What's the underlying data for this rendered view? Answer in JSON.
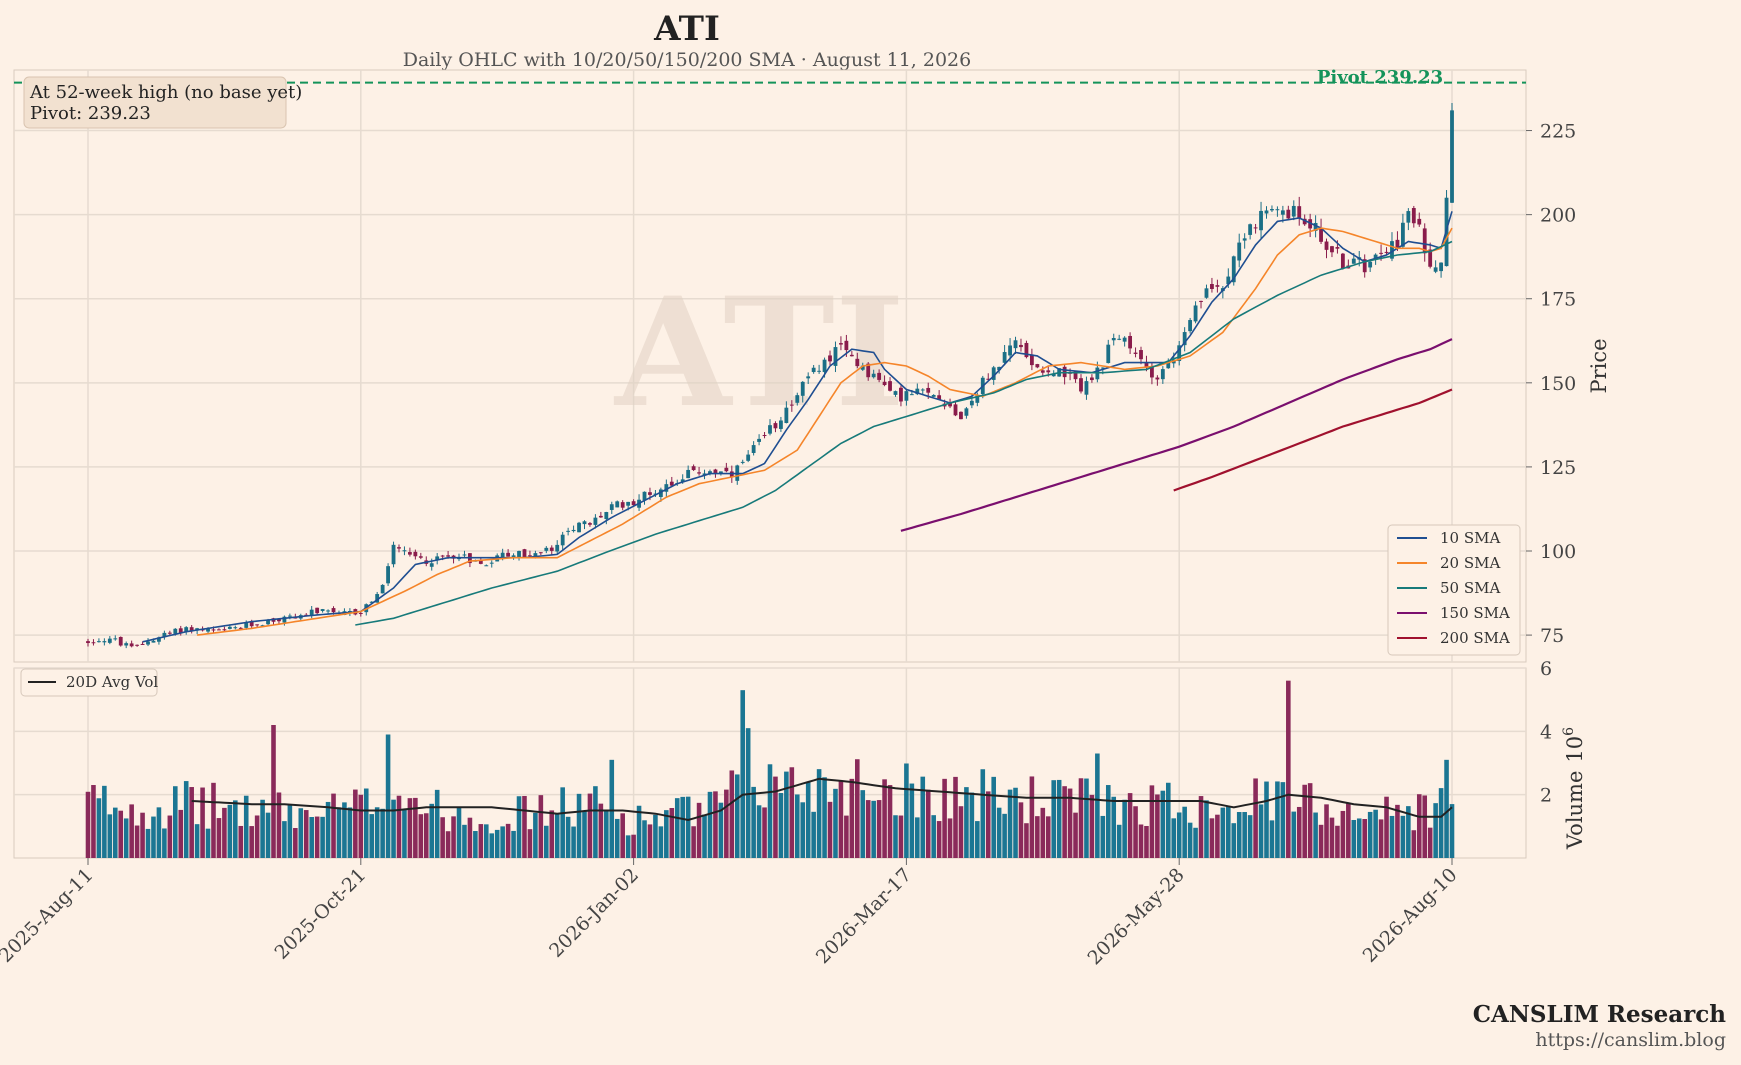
{
  "chart_data": {
    "type": "candlestick",
    "ticker": "ATI",
    "title": "ATI",
    "subtitle": "Daily OHLC with 10/20/50/150/200 SMA  ·  August 11, 2026",
    "watermark": "ATI",
    "price_axis": {
      "label": "Price",
      "ylim": [
        67,
        243
      ],
      "ticks": [
        75,
        100,
        125,
        150,
        175,
        200,
        225
      ]
    },
    "volume_axis": {
      "label": "Volume",
      "multiplier": "10",
      "multiplier_exp": "6",
      "ylim": [
        0,
        6
      ],
      "ticks": [
        2,
        4,
        6
      ]
    },
    "x_tick_labels": [
      "2025-Aug-11",
      "2025-Oct-21",
      "2026-Jan-02",
      "2026-Mar-17",
      "2026-May-28",
      "2026-Aug-10"
    ],
    "x_tick_index": [
      0,
      50,
      100,
      150,
      200,
      250
    ],
    "n_bars": 251,
    "pivot": {
      "value": 239.23,
      "label": "Pivot 239.23",
      "color": "#14935a"
    },
    "annotation": {
      "line1": "At 52-week high (no base yet)",
      "line2": "Pivot: 239.23"
    },
    "price_path": [
      [
        0,
        73
      ],
      [
        4,
        74
      ],
      [
        8,
        71
      ],
      [
        12,
        74
      ],
      [
        18,
        77
      ],
      [
        24,
        76
      ],
      [
        30,
        78
      ],
      [
        36,
        80
      ],
      [
        42,
        82
      ],
      [
        46,
        81
      ],
      [
        50,
        82
      ],
      [
        54,
        89
      ],
      [
        56,
        102
      ],
      [
        58,
        99
      ],
      [
        62,
        97
      ],
      [
        68,
        99
      ],
      [
        72,
        96
      ],
      [
        76,
        99
      ],
      [
        82,
        99
      ],
      [
        86,
        101
      ],
      [
        88,
        107
      ],
      [
        92,
        108
      ],
      [
        96,
        113
      ],
      [
        100,
        115
      ],
      [
        104,
        118
      ],
      [
        110,
        123
      ],
      [
        114,
        124
      ],
      [
        118,
        122
      ],
      [
        122,
        130
      ],
      [
        126,
        138
      ],
      [
        130,
        147
      ],
      [
        134,
        155
      ],
      [
        138,
        160
      ],
      [
        140,
        158
      ],
      [
        144,
        152
      ],
      [
        148,
        146
      ],
      [
        152,
        147
      ],
      [
        156,
        146
      ],
      [
        160,
        140
      ],
      [
        164,
        150
      ],
      [
        168,
        158
      ],
      [
        170,
        162
      ],
      [
        174,
        155
      ],
      [
        178,
        153
      ],
      [
        182,
        149
      ],
      [
        186,
        154
      ],
      [
        188,
        165
      ],
      [
        192,
        158
      ],
      [
        196,
        152
      ],
      [
        200,
        160
      ],
      [
        204,
        175
      ],
      [
        208,
        180
      ],
      [
        212,
        195
      ],
      [
        216,
        200
      ],
      [
        220,
        201
      ],
      [
        224,
        198
      ],
      [
        226,
        193
      ],
      [
        230,
        186
      ],
      [
        234,
        185
      ],
      [
        236,
        190
      ],
      [
        240,
        192
      ],
      [
        242,
        200
      ],
      [
        244,
        195
      ],
      [
        246,
        185
      ],
      [
        248,
        188
      ],
      [
        249,
        203
      ],
      [
        250,
        236
      ]
    ],
    "sma": [
      {
        "name": "10 SMA",
        "color": "#1f4e91",
        "start": 10,
        "path": [
          [
            10,
            73
          ],
          [
            18,
            76
          ],
          [
            30,
            79
          ],
          [
            42,
            81
          ],
          [
            50,
            82
          ],
          [
            56,
            89
          ],
          [
            60,
            96
          ],
          [
            66,
            98
          ],
          [
            72,
            98
          ],
          [
            80,
            98
          ],
          [
            86,
            99
          ],
          [
            90,
            104
          ],
          [
            96,
            110
          ],
          [
            102,
            115
          ],
          [
            108,
            120
          ],
          [
            114,
            123
          ],
          [
            120,
            123
          ],
          [
            124,
            126
          ],
          [
            128,
            136
          ],
          [
            132,
            145
          ],
          [
            136,
            155
          ],
          [
            140,
            160
          ],
          [
            144,
            159
          ],
          [
            146,
            154
          ],
          [
            150,
            148
          ],
          [
            154,
            146
          ],
          [
            158,
            144
          ],
          [
            162,
            146
          ],
          [
            166,
            152
          ],
          [
            170,
            159
          ],
          [
            174,
            158
          ],
          [
            178,
            154
          ],
          [
            184,
            153
          ],
          [
            190,
            156
          ],
          [
            194,
            156
          ],
          [
            198,
            156
          ],
          [
            202,
            164
          ],
          [
            206,
            174
          ],
          [
            210,
            181
          ],
          [
            214,
            191
          ],
          [
            218,
            198
          ],
          [
            222,
            199
          ],
          [
            226,
            196
          ],
          [
            230,
            190
          ],
          [
            234,
            186
          ],
          [
            238,
            188
          ],
          [
            242,
            192
          ],
          [
            246,
            191
          ],
          [
            248,
            190
          ],
          [
            250,
            201
          ]
        ]
      },
      {
        "name": "20 SMA",
        "color": "#f5852a",
        "start": 20,
        "path": [
          [
            20,
            75
          ],
          [
            30,
            77
          ],
          [
            42,
            80
          ],
          [
            50,
            82
          ],
          [
            58,
            88
          ],
          [
            64,
            93
          ],
          [
            70,
            97
          ],
          [
            78,
            98
          ],
          [
            86,
            98
          ],
          [
            92,
            103
          ],
          [
            98,
            108
          ],
          [
            106,
            116
          ],
          [
            112,
            120
          ],
          [
            118,
            122
          ],
          [
            124,
            124
          ],
          [
            130,
            130
          ],
          [
            134,
            140
          ],
          [
            138,
            150
          ],
          [
            142,
            155
          ],
          [
            146,
            156
          ],
          [
            150,
            155
          ],
          [
            154,
            152
          ],
          [
            158,
            148
          ],
          [
            164,
            146
          ],
          [
            170,
            150
          ],
          [
            176,
            155
          ],
          [
            182,
            156
          ],
          [
            190,
            154
          ],
          [
            196,
            155
          ],
          [
            202,
            158
          ],
          [
            208,
            165
          ],
          [
            214,
            178
          ],
          [
            218,
            188
          ],
          [
            222,
            194
          ],
          [
            226,
            196
          ],
          [
            230,
            195
          ],
          [
            236,
            192
          ],
          [
            240,
            190
          ],
          [
            244,
            190
          ],
          [
            246,
            189
          ],
          [
            248,
            190
          ],
          [
            250,
            196
          ]
        ]
      },
      {
        "name": "50 SMA",
        "color": "#177a7a",
        "start": 49,
        "path": [
          [
            49,
            78
          ],
          [
            56,
            80
          ],
          [
            64,
            84
          ],
          [
            74,
            89
          ],
          [
            86,
            94
          ],
          [
            94,
            99
          ],
          [
            104,
            105
          ],
          [
            112,
            109
          ],
          [
            120,
            113
          ],
          [
            126,
            118
          ],
          [
            132,
            125
          ],
          [
            138,
            132
          ],
          [
            144,
            137
          ],
          [
            150,
            140
          ],
          [
            158,
            144
          ],
          [
            166,
            147
          ],
          [
            172,
            151
          ],
          [
            178,
            153
          ],
          [
            186,
            153
          ],
          [
            194,
            154
          ],
          [
            202,
            159
          ],
          [
            210,
            169
          ],
          [
            218,
            176
          ],
          [
            226,
            182
          ],
          [
            234,
            186
          ],
          [
            240,
            188
          ],
          [
            246,
            189
          ],
          [
            250,
            192
          ]
        ]
      },
      {
        "name": "150 SMA",
        "color": "#7a0f6e",
        "start": 149,
        "path": [
          [
            149,
            106
          ],
          [
            160,
            111
          ],
          [
            170,
            116
          ],
          [
            180,
            121
          ],
          [
            190,
            126
          ],
          [
            200,
            131
          ],
          [
            210,
            137
          ],
          [
            220,
            144
          ],
          [
            230,
            151
          ],
          [
            240,
            157
          ],
          [
            246,
            160
          ],
          [
            250,
            163
          ]
        ]
      },
      {
        "name": "200 SMA",
        "color": "#a0112e",
        "start": 199,
        "path": [
          [
            199,
            118
          ],
          [
            206,
            122
          ],
          [
            214,
            127
          ],
          [
            222,
            132
          ],
          [
            230,
            137
          ],
          [
            238,
            141
          ],
          [
            244,
            144
          ],
          [
            250,
            148
          ]
        ]
      }
    ],
    "volume_profile": [
      [
        0,
        1.8
      ],
      [
        10,
        1.6
      ],
      [
        20,
        1.7
      ],
      [
        30,
        1.5
      ],
      [
        40,
        1.4
      ],
      [
        50,
        1.6
      ],
      [
        56,
        2.2
      ],
      [
        64,
        1.5
      ],
      [
        74,
        1.3
      ],
      [
        84,
        1.5
      ],
      [
        92,
        1.7
      ],
      [
        100,
        1.2
      ],
      [
        108,
        1.4
      ],
      [
        114,
        1.5
      ],
      [
        118,
        2.0
      ],
      [
        122,
        2.4
      ],
      [
        130,
        2.3
      ],
      [
        140,
        2.4
      ],
      [
        150,
        2.2
      ],
      [
        160,
        2.0
      ],
      [
        170,
        1.9
      ],
      [
        180,
        1.8
      ],
      [
        190,
        1.8
      ],
      [
        200,
        1.7
      ],
      [
        210,
        1.8
      ],
      [
        220,
        1.8
      ],
      [
        230,
        1.6
      ],
      [
        240,
        1.4
      ],
      [
        248,
        1.7
      ],
      [
        250,
        1.5
      ]
    ],
    "volume_spikes": [
      [
        34,
        4.2
      ],
      [
        55,
        3.9
      ],
      [
        96,
        3.1
      ],
      [
        120,
        5.3
      ],
      [
        121,
        4.1
      ],
      [
        185,
        3.3
      ],
      [
        220,
        5.6
      ],
      [
        249,
        3.1
      ]
    ],
    "avg_vol": {
      "name": "20D Avg Vol",
      "color": "#222222",
      "path": [
        [
          19,
          1.8
        ],
        [
          30,
          1.7
        ],
        [
          36,
          1.7
        ],
        [
          44,
          1.6
        ],
        [
          50,
          1.5
        ],
        [
          56,
          1.5
        ],
        [
          62,
          1.6
        ],
        [
          68,
          1.6
        ],
        [
          74,
          1.6
        ],
        [
          80,
          1.5
        ],
        [
          86,
          1.4
        ],
        [
          92,
          1.5
        ],
        [
          98,
          1.5
        ],
        [
          104,
          1.4
        ],
        [
          110,
          1.2
        ],
        [
          116,
          1.5
        ],
        [
          120,
          2.0
        ],
        [
          126,
          2.1
        ],
        [
          134,
          2.5
        ],
        [
          140,
          2.4
        ],
        [
          148,
          2.2
        ],
        [
          156,
          2.1
        ],
        [
          164,
          2.0
        ],
        [
          172,
          1.9
        ],
        [
          180,
          1.9
        ],
        [
          188,
          1.8
        ],
        [
          196,
          1.8
        ],
        [
          204,
          1.8
        ],
        [
          210,
          1.6
        ],
        [
          216,
          1.8
        ],
        [
          220,
          2.0
        ],
        [
          226,
          1.9
        ],
        [
          232,
          1.7
        ],
        [
          238,
          1.6
        ],
        [
          244,
          1.3
        ],
        [
          248,
          1.3
        ],
        [
          250,
          1.6
        ]
      ]
    },
    "colors": {
      "up": "#1b6f86",
      "down": "#8a1c4b",
      "vol_up": "#1b7693",
      "vol_down": "#8a2a5a",
      "grid": "#e6dbd0"
    },
    "legend_position": "lower-right"
  },
  "branding": {
    "name": "CANSLIM Research",
    "url": "https://canslim.blog"
  }
}
